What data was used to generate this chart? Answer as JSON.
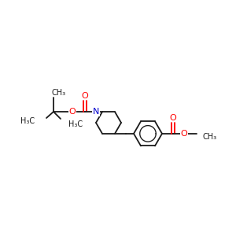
{
  "bg_color": "#ffffff",
  "line_color": "#1a1a1a",
  "oxygen_color": "#ff0000",
  "nitrogen_color": "#0000cd",
  "bond_lw": 1.3,
  "font_size": 7.5,
  "figsize": [
    3.0,
    3.0
  ],
  "dpi": 100,
  "xlim": [
    0,
    300
  ],
  "ylim": [
    0,
    300
  ]
}
